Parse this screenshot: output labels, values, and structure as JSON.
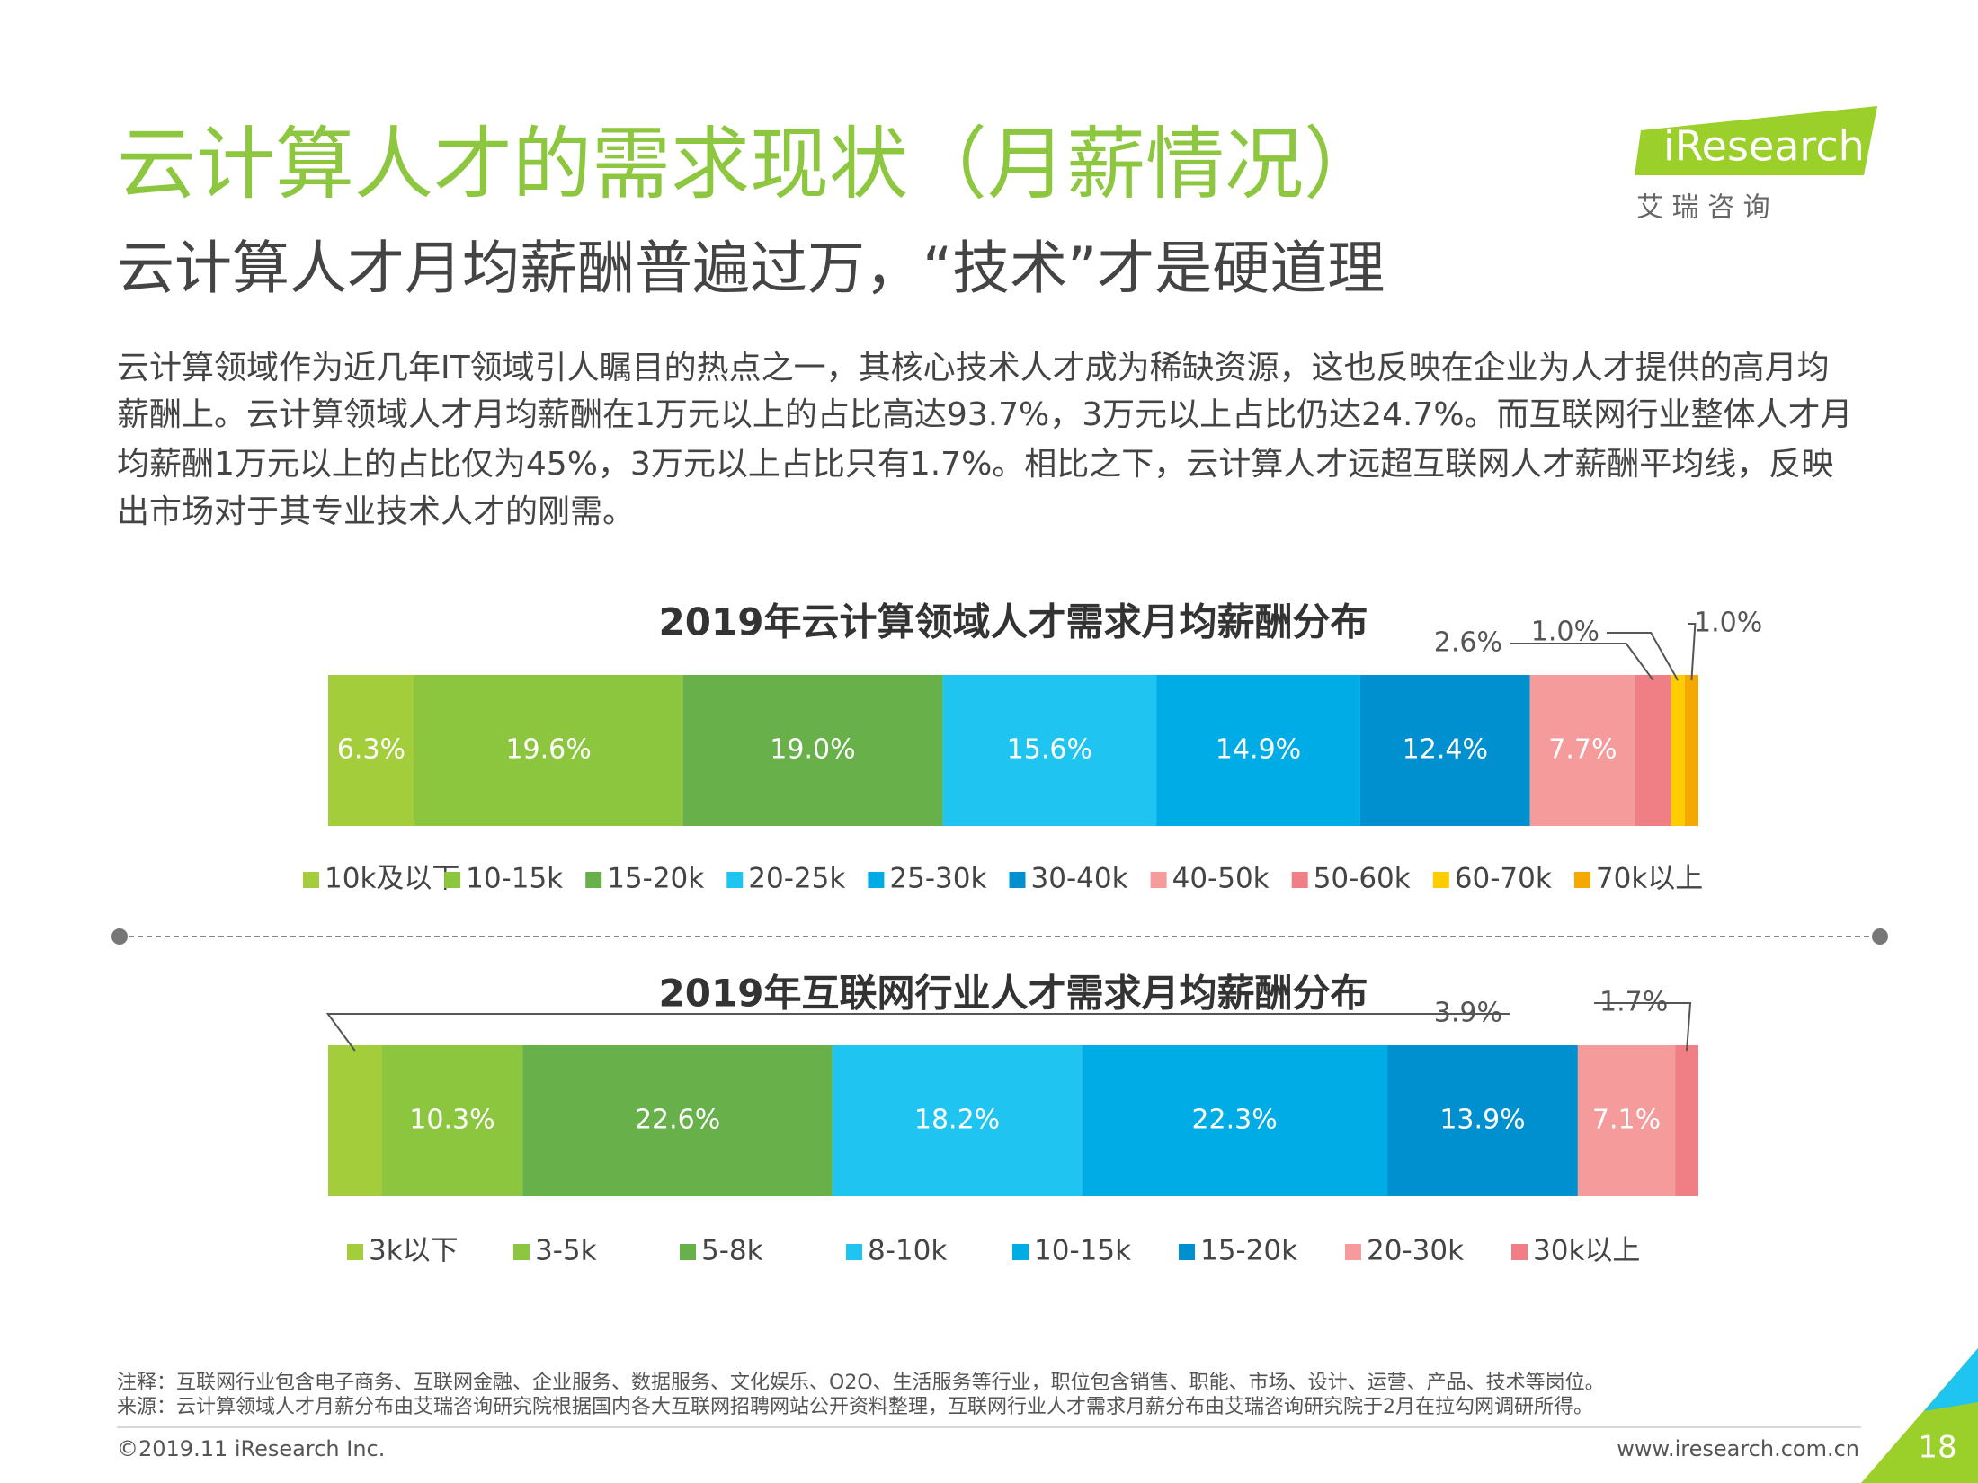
{
  "title": "云计算人才的需求现状（月薪情况）",
  "subtitle": "云计算人才月均薪酬普遍过万，“技术”才是硬道理",
  "body": [
    "云计算领域作为近几年IT领域引人瞩目的热点之一，其核心技术人才成为稀缺资源，这也反映在企业为人才提供的高月均",
    "薪酬上。云计算领域人才月均薪酬在1万元以上的占比高达93.7%，3万元以上占比仍达24.7%。而互联网行业整体人才月",
    "均薪酬1万元以上的占比仅为45%，3万元以上占比只有1.7%。相比之下，云计算人才远超互联网人才薪酬平均线，反映",
    "出市场对于其专业技术人才的刚需。"
  ],
  "logo": {
    "brand": "iResearch",
    "cn": "艾 瑞 咨 询"
  },
  "chart_data": [
    {
      "type": "stacked_bar",
      "title": "2019年云计算领域人才需求月均薪酬分布",
      "series": [
        {
          "name": "10k及以下",
          "color": "#a3cd3b",
          "values": [
            6.3
          ],
          "value_labels": [
            "6.3%"
          ]
        },
        {
          "name": "10-15k",
          "color": "#8cc63f",
          "values": [
            19.6
          ],
          "value_labels": [
            "19.6%"
          ]
        },
        {
          "name": "15-20k",
          "color": "#67b04a",
          "values": [
            19.0
          ],
          "value_labels": [
            "19.0%"
          ]
        },
        {
          "name": "20-25k",
          "color": "#1fc4f0",
          "values": [
            15.6
          ],
          "value_labels": [
            "15.6%"
          ]
        },
        {
          "name": "25-30k",
          "color": "#00ace6",
          "values": [
            14.9
          ],
          "value_labels": [
            "14.9%"
          ]
        },
        {
          "name": "30-40k",
          "color": "#0090d0",
          "values": [
            12.4
          ],
          "value_labels": [
            "12.4%"
          ]
        },
        {
          "name": "40-50k",
          "color": "#f59b9b",
          "values": [
            7.7
          ],
          "value_labels": [
            "7.7%"
          ]
        },
        {
          "name": "50-60k",
          "color": "#ef7f85",
          "values": [
            2.6
          ],
          "value_labels": [
            "2.6%"
          ]
        },
        {
          "name": "60-70k",
          "color": "#ffcc00",
          "values": [
            1.0
          ],
          "value_labels": [
            "1.0%"
          ]
        },
        {
          "name": "70k以上",
          "color": "#f5a800",
          "values": [
            1.0
          ],
          "value_labels": [
            "1.0%"
          ]
        }
      ]
    },
    {
      "type": "stacked_bar",
      "title": "2019年互联网行业人才需求月均薪酬分布",
      "series": [
        {
          "name": "3k以下",
          "color": "#a3cd3b",
          "values": [
            3.9
          ],
          "value_labels": [
            "3.9%"
          ]
        },
        {
          "name": "3-5k",
          "color": "#8cc63f",
          "values": [
            10.3
          ],
          "value_labels": [
            "10.3%"
          ]
        },
        {
          "name": "5-8k",
          "color": "#67b04a",
          "values": [
            22.6
          ],
          "value_labels": [
            "22.6%"
          ]
        },
        {
          "name": "8-10k",
          "color": "#1fc4f0",
          "values": [
            18.2
          ],
          "value_labels": [
            "18.2%"
          ]
        },
        {
          "name": "10-15k",
          "color": "#00ace6",
          "values": [
            22.3
          ],
          "value_labels": [
            "22.3%"
          ]
        },
        {
          "name": "15-20k",
          "color": "#0090d0",
          "values": [
            13.9
          ],
          "value_labels": [
            "13.9%"
          ]
        },
        {
          "name": "20-30k",
          "color": "#f59b9b",
          "values": [
            7.1
          ],
          "value_labels": [
            "7.1%"
          ]
        },
        {
          "name": "30k以上",
          "color": "#ef7f85",
          "values": [
            1.7
          ],
          "value_labels": [
            "1.7%"
          ]
        }
      ]
    }
  ],
  "notes": [
    "注释：互联网行业包含电子商务、互联网金融、企业服务、数据服务、文化娱乐、O2O、生活服务等行业，职位包含销售、职能、市场、设计、运营、产品、技术等岗位。",
    "来源：云计算领域人才月薪分布由艾瑞咨询研究院根据国内各大互联网招聘网站公开资料整理，互联网行业人才需求月薪分布由艾瑞咨询研究院于2月在拉勾网调研所得。"
  ],
  "footer": {
    "copyright": "©2019.11 iResearch Inc.",
    "url": "www.iresearch.com.cn",
    "page": "18"
  }
}
